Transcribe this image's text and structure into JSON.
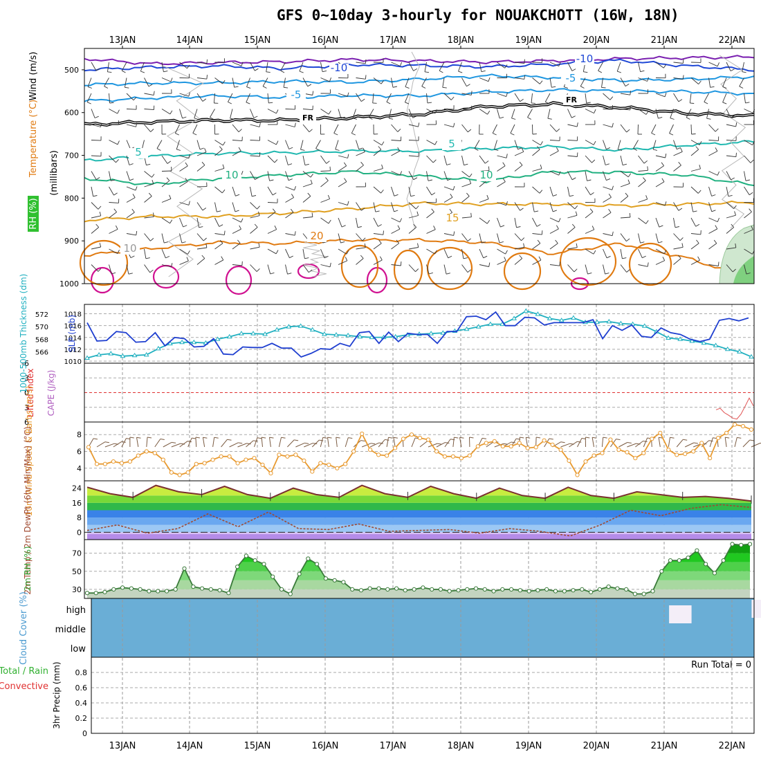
{
  "title": "GFS 0~10day 3-hourly for NOUAKCHOTT (16W, 18N)",
  "date_labels": [
    "13JAN",
    "14JAN",
    "15JAN",
    "16JAN",
    "17JAN",
    "18JAN",
    "19JAN",
    "20JAN",
    "21JAN",
    "22JAN"
  ],
  "colors": {
    "temp_cold": "#7a1fb0",
    "temp_blue": "#1f48d6",
    "temp_lightblue": "#1e96e0",
    "freezing": "#000000",
    "temp_teal": "#20b8b0",
    "temp_green": "#20b080",
    "temp_orange": "#e0a020",
    "temp_dark_orange": "#e07a10",
    "temp_hot": "#d01090",
    "slp": "#1f3fd0",
    "thickness": "#20b0c0",
    "wind_speed": "#e89a30",
    "rh_green": "#30c030",
    "cloud_blue": "#6aaed6",
    "cloud_gap": "#f4eef8",
    "lifted_zero": "#e03030"
  },
  "chart_data": [
    {
      "type": "line",
      "name": "upper-air-cross-section",
      "ylabel_parts": [
        "Wind (m/s)",
        "Temperature (°C)",
        "RH (%)"
      ],
      "ylabel_units": "(millibars)",
      "y_ticks": [
        "500",
        "600",
        "700",
        "800",
        "900",
        "1000"
      ],
      "ylim": [
        450,
        1000
      ],
      "isotherm_labels": [
        "-10",
        "-10",
        "-5",
        "-5",
        "FR",
        "FR",
        "5",
        "5",
        "10",
        "10",
        "15",
        "20",
        "10"
      ],
      "series": [
        {
          "name": "-15",
          "level_mb": [
            474,
            486,
            483,
            481,
            476,
            479,
            482,
            479,
            474,
            472,
            470
          ]
        },
        {
          "name": "-10",
          "level_mb": [
            500,
            494,
            491,
            497,
            488,
            490,
            493,
            487,
            478,
            491,
            500
          ]
        },
        {
          "name": "-5",
          "level_mb": [
            535,
            531,
            531,
            527,
            529,
            522,
            514,
            518,
            525,
            522,
            516
          ]
        },
        {
          "name": "-3",
          "level_mb": [
            573,
            566,
            561,
            565,
            560,
            561,
            552,
            547,
            550,
            551,
            556
          ]
        },
        {
          "name": "FR",
          "level_mb": [
            628,
            622,
            618,
            618,
            612,
            604,
            586,
            580,
            588,
            602,
            608
          ]
        },
        {
          "name": "5",
          "level_mb": [
            712,
            702,
            695,
            694,
            690,
            690,
            684,
            680,
            688,
            676,
            668
          ]
        },
        {
          "name": "10",
          "level_mb": [
            754,
            768,
            754,
            746,
            738,
            748,
            760,
            738,
            740,
            746,
            770
          ]
        },
        {
          "name": "15",
          "level_mb": [
            852,
            843,
            843,
            835,
            825,
            812,
            814,
            814,
            818,
            814,
            810
          ]
        },
        {
          "name": "20",
          "level_mb": [
            934,
            918,
            904,
            906,
            898,
            898,
            904,
            930,
            906,
            940,
            990
          ]
        }
      ]
    },
    {
      "type": "line",
      "name": "slp-thickness",
      "ylabel_left": "1000-500mb Thickness (dm)",
      "ylabel_right": "SLP (mb)",
      "thickness_ticks": [
        "566",
        "568",
        "570",
        "572"
      ],
      "slp_ticks": [
        "1010",
        "1012",
        "1014",
        "1016",
        "1018"
      ],
      "series": [
        {
          "name": "SLP (mb)",
          "values": [
            1016.5,
            1013.4,
            1013.5,
            1015.0,
            1014.8,
            1013.2,
            1013.3,
            1014.8,
            1012.6,
            1014.0,
            1013.8,
            1012.4,
            1012.5,
            1013.8,
            1011.2,
            1011.1,
            1012.4,
            1012.3,
            1012.3,
            1013.0,
            1012.2,
            1012.2,
            1010.7,
            1011.3,
            1012.1,
            1012.0,
            1013.0,
            1012.5,
            1014.8,
            1015.0,
            1013.0,
            1014.9,
            1013.3,
            1014.7,
            1014.5,
            1014.5,
            1013.0,
            1015.0,
            1015.0,
            1017.5,
            1017.6,
            1017.0,
            1018.3,
            1016.0,
            1016.0,
            1017.4,
            1017.3,
            1016.1,
            1016.5,
            1016.5,
            1016.5,
            1016.5,
            1017.0,
            1013.8,
            1016.0,
            1015.2,
            1016.1,
            1014.2,
            1014.0,
            1015.6,
            1014.8,
            1014.5,
            1013.7,
            1013.3,
            1013.7,
            1016.9,
            1017.2,
            1016.8,
            1017.3
          ]
        },
        {
          "name": "Thickness (dm)",
          "values": [
            565.0,
            565.5,
            565.7,
            565.3,
            565.4,
            565.5,
            566.5,
            567.3,
            567.5,
            567.5,
            567.4,
            568.0,
            568.4,
            568.9,
            568.9,
            568.8,
            569.5,
            570.0,
            570.1,
            569.5,
            568.8,
            568.7,
            568.6,
            568.4,
            568.3,
            568.3,
            568.4,
            568.7,
            568.8,
            568.9,
            569.0,
            569.3,
            569.6,
            570.0,
            570.4,
            570.4,
            571.3,
            572.5,
            572.0,
            571.3,
            571.0,
            571.4,
            570.7,
            570.7,
            570.8,
            570.5,
            570.4,
            570.1,
            569.2,
            568.2,
            568.0,
            567.7,
            567.4,
            567.0,
            566.4,
            566.0,
            565.2
          ]
        }
      ]
    },
    {
      "type": "line",
      "name": "cape-lifted-index",
      "ylabel_left": "Lifted Index",
      "ylabel_right": "CAPE (J/kg)",
      "ylim": [
        6,
        -6
      ],
      "y_ticks": [
        "-6",
        "-3",
        "0",
        "3",
        "6"
      ],
      "series": [
        {
          "name": "Lifted Index",
          "values": [
            3.5,
            3.2,
            4.1,
            4.6,
            5.2,
            5.4,
            4.4,
            2.8,
            1.1,
            2.7
          ]
        }
      ]
    },
    {
      "type": "line",
      "name": "10m-wind",
      "ylabel": "10m Wind Speed & Barbs (m/s)",
      "y_ticks": [
        "4",
        "6",
        "8"
      ],
      "ylim": [
        2.5,
        9.5
      ],
      "series": [
        {
          "name": "Speed (m/s)",
          "values": [
            6.5,
            4.5,
            4.5,
            4.8,
            4.6,
            4.8,
            5.5,
            6.0,
            5.8,
            5.0,
            3.5,
            3.2,
            3.5,
            4.5,
            4.6,
            5.0,
            5.4,
            5.4,
            4.6,
            5.0,
            5.2,
            4.4,
            3.4,
            5.6,
            5.4,
            5.6,
            4.9,
            3.6,
            4.6,
            4.4,
            4.0,
            4.5,
            6.0,
            8.1,
            6.2,
            5.6,
            5.5,
            6.4,
            7.5,
            8.0,
            7.6,
            7.4,
            6.0,
            5.4,
            5.4,
            5.2,
            5.5,
            6.6,
            7.0,
            7.2,
            6.6,
            6.6,
            7.0,
            6.4,
            6.5,
            7.3,
            6.8,
            6.2,
            4.9,
            3.2,
            4.8,
            5.5,
            5.8,
            7.4,
            6.2,
            5.9,
            5.2,
            5.8,
            7.5,
            8.2,
            6.2,
            5.6,
            5.7,
            6.0,
            7.0,
            5.2,
            7.6,
            8.2,
            9.2,
            9.0,
            8.6
          ]
        }
      ]
    },
    {
      "type": "area",
      "name": "2m-temperature",
      "ylabel": "2m Temp / 2m DewPt (6hr Min/Max) (°C)",
      "y_ticks": [
        "0",
        "8",
        "16",
        "24"
      ],
      "ylim": [
        -4,
        28
      ],
      "series": [
        {
          "name": "2m Temp",
          "values": [
            24.5,
            21.0,
            19.0,
            25.5,
            22.0,
            20.5,
            25.0,
            20.5,
            18.5,
            24.0,
            20.5,
            19.0,
            25.5,
            21.0,
            19.0,
            25.0,
            21.0,
            18.5,
            24.0,
            20.0,
            18.5,
            24.5,
            20.0,
            18.5,
            22.0,
            20.5,
            19.0,
            19.5,
            18.5,
            17.0
          ]
        },
        {
          "name": "2m DewPt",
          "values": [
            1.0,
            4.0,
            -0.5,
            2.0,
            10.0,
            3.0,
            11.0,
            2.0,
            1.5,
            4.5,
            0.5,
            1.0,
            1.5,
            -0.5,
            2.0,
            0.5,
            -2.0,
            4.0,
            12.0,
            9.0,
            13.0,
            15.0,
            13.5
          ]
        }
      ]
    },
    {
      "type": "area",
      "name": "2m-rh",
      "ylabel": "2m RH (%)",
      "y_ticks": [
        "30",
        "50",
        "70"
      ],
      "ylim": [
        20,
        85
      ],
      "series": [
        {
          "name": "2m RH",
          "values": [
            26,
            26,
            27,
            30,
            32,
            31,
            30,
            28,
            28,
            28,
            30,
            53,
            33,
            31,
            30,
            29,
            26,
            55,
            67,
            62,
            58,
            44,
            30,
            25,
            47,
            64,
            58,
            42,
            40,
            38,
            30,
            29,
            31,
            31,
            30,
            31,
            29,
            30,
            32,
            30,
            30,
            28,
            29,
            30,
            31,
            30,
            28,
            30,
            30,
            29,
            28,
            29,
            30,
            28,
            28,
            29,
            30,
            27,
            30,
            33,
            31,
            30,
            25,
            25,
            28,
            50,
            62,
            62,
            65,
            73,
            58,
            48,
            62,
            80,
            79,
            80
          ]
        }
      ]
    },
    {
      "type": "area",
      "name": "cloud-cover",
      "ylabel": "Cloud Cover (%)",
      "y_ticks": [
        "high",
        "middle",
        "low"
      ],
      "series": [
        {
          "name": "High cloud gaps (index ranges of 3-hourly steps)",
          "values": [
            [
              28,
              32
            ],
            [
              32,
              45
            ],
            [
              45,
              46
            ],
            [
              44,
              58
            ],
            [
              70,
              76
            ],
            [
              76,
              83
            ],
            [
              82,
              98
            ],
            [
              100,
              104
            ]
          ]
        }
      ]
    },
    {
      "type": "line",
      "name": "precipitation",
      "ylabel": "3hr Precip (mm)",
      "legend": [
        "Total / Rain",
        "Convective"
      ],
      "y_ticks": [
        "0",
        "0.2",
        "0.4",
        "0.6",
        "0.8"
      ],
      "ylim": [
        0,
        1
      ],
      "run_total_label": "Run Total = 0",
      "series": [
        {
          "name": "3hr Precip (mm)",
          "values": [
            0,
            0,
            0,
            0,
            0,
            0,
            0,
            0,
            0,
            0
          ]
        }
      ]
    }
  ]
}
